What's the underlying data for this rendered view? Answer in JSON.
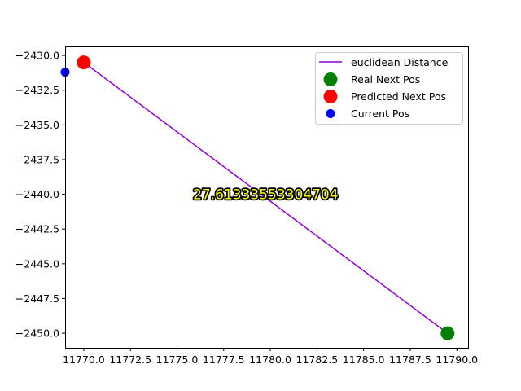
{
  "chart_data": {
    "type": "scatter",
    "title": "",
    "xlabel": "",
    "ylabel": "",
    "xlim": [
      11769.0,
      11790.6
    ],
    "ylim": [
      -2451.05,
      -2429.35
    ],
    "x_ticks": [
      11770.0,
      11772.5,
      11775.0,
      11777.5,
      11780.0,
      11782.5,
      11785.0,
      11787.5,
      11790.0
    ],
    "x_tick_labels": [
      "11770.0",
      "11772.5",
      "11775.0",
      "11777.5",
      "11780.0",
      "11782.5",
      "11785.0",
      "11787.5",
      "11790.0"
    ],
    "y_ticks": [
      -2430.0,
      -2432.5,
      -2435.0,
      -2437.5,
      -2440.0,
      -2442.5,
      -2445.0,
      -2447.5,
      -2450.0
    ],
    "y_tick_labels": [
      "−2430.0",
      "−2432.5",
      "−2435.0",
      "−2437.5",
      "−2440.0",
      "−2442.5",
      "−2445.0",
      "−2447.5",
      "−2450.0"
    ],
    "grid": false,
    "legend_position": "top-right",
    "series": [
      {
        "name": "euclidean Distance",
        "kind": "line",
        "color": "#9400d3",
        "points": [
          [
            11770.0,
            -2430.5
          ],
          [
            11789.5,
            -2450.0
          ]
        ]
      },
      {
        "name": "Real Next Pos",
        "kind": "scatter",
        "color": "#008000",
        "size": "large",
        "points": [
          [
            11789.5,
            -2450.0
          ]
        ]
      },
      {
        "name": "Predicted Next Pos",
        "kind": "scatter",
        "color": "#ff0000",
        "size": "large",
        "points": [
          [
            11770.0,
            -2430.5
          ]
        ]
      },
      {
        "name": "Current Pos",
        "kind": "scatter",
        "color": "#0000ff",
        "size": "small",
        "points": [
          [
            11769.0,
            -2431.2
          ]
        ]
      }
    ],
    "annotations": [
      {
        "text": "27.61333553304704",
        "x": 11779.75,
        "y": -2440.0,
        "color": "#ffff00",
        "outline": "#000000"
      }
    ]
  }
}
